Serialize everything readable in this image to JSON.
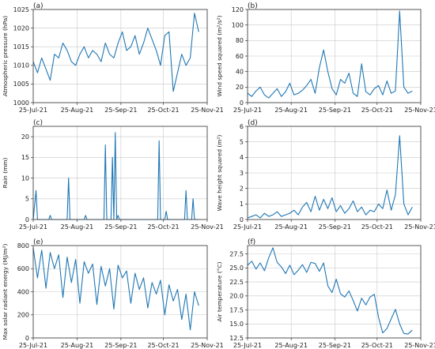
{
  "figure": {
    "series_color": "#1f77b4",
    "x_tick_labels": [
      "25-Jul-21",
      "25-Aug-21",
      "25-Sep-21",
      "25-Oct-21",
      "25-Nov-21"
    ]
  },
  "chart_data": [
    {
      "type": "line",
      "panel_label": "(a)",
      "ylabel": "Atmospheric pressure (hPa)",
      "xlim": [
        "2021-07-25",
        "2021-11-25"
      ],
      "ylim": [
        1000,
        1025
      ],
      "y_ticks": [
        1000,
        1005,
        1010,
        1015,
        1020,
        1025
      ],
      "y_tick_labels": [
        "1000",
        "1005",
        "1010",
        "1015",
        "1020",
        "1025"
      ],
      "grid": true,
      "x": [
        "2021-07-25",
        "2021-07-28",
        "2021-07-31",
        "2021-08-03",
        "2021-08-06",
        "2021-08-09",
        "2021-08-12",
        "2021-08-15",
        "2021-08-18",
        "2021-08-21",
        "2021-08-24",
        "2021-08-27",
        "2021-08-30",
        "2021-09-02",
        "2021-09-05",
        "2021-09-08",
        "2021-09-11",
        "2021-09-14",
        "2021-09-17",
        "2021-09-20",
        "2021-09-23",
        "2021-09-26",
        "2021-09-29",
        "2021-10-02",
        "2021-10-05",
        "2021-10-08",
        "2021-10-11",
        "2021-10-14",
        "2021-10-17",
        "2021-10-20",
        "2021-10-23",
        "2021-10-26",
        "2021-10-29",
        "2021-11-01",
        "2021-11-04",
        "2021-11-07",
        "2021-11-10",
        "2021-11-13",
        "2021-11-16",
        "2021-11-19"
      ],
      "values": [
        1011,
        1008,
        1012,
        1009,
        1006,
        1013,
        1012,
        1016,
        1014,
        1011,
        1010,
        1013,
        1015,
        1012,
        1014,
        1013,
        1011,
        1016,
        1013,
        1012,
        1016,
        1019,
        1014,
        1015,
        1018,
        1013,
        1016,
        1020,
        1017,
        1014,
        1010,
        1018,
        1019,
        1003,
        1008,
        1013,
        1010,
        1012,
        1024,
        1019
      ]
    },
    {
      "type": "line",
      "panel_label": "(b)",
      "ylabel": "Wind speed squared (m²/s²)",
      "xlim": [
        "2021-07-25",
        "2021-11-25"
      ],
      "ylim": [
        0,
        120
      ],
      "y_ticks": [
        0,
        20,
        40,
        60,
        80,
        100,
        120
      ],
      "y_tick_labels": [
        "0",
        "20",
        "40",
        "60",
        "80",
        "100",
        "120"
      ],
      "grid": true,
      "x": [
        "2021-07-25",
        "2021-07-28",
        "2021-07-31",
        "2021-08-03",
        "2021-08-06",
        "2021-08-09",
        "2021-08-12",
        "2021-08-15",
        "2021-08-18",
        "2021-08-21",
        "2021-08-24",
        "2021-08-27",
        "2021-08-30",
        "2021-09-02",
        "2021-09-05",
        "2021-09-08",
        "2021-09-11",
        "2021-09-14",
        "2021-09-17",
        "2021-09-20",
        "2021-09-23",
        "2021-09-26",
        "2021-09-29",
        "2021-10-02",
        "2021-10-05",
        "2021-10-08",
        "2021-10-11",
        "2021-10-14",
        "2021-10-17",
        "2021-10-20",
        "2021-10-23",
        "2021-10-26",
        "2021-10-29",
        "2021-11-01",
        "2021-11-04",
        "2021-11-07",
        "2021-11-10",
        "2021-11-13",
        "2021-11-16",
        "2021-11-19"
      ],
      "values": [
        12,
        8,
        15,
        20,
        10,
        6,
        12,
        18,
        8,
        14,
        25,
        10,
        12,
        16,
        22,
        30,
        12,
        45,
        68,
        40,
        18,
        10,
        30,
        25,
        38,
        12,
        8,
        50,
        14,
        10,
        18,
        22,
        10,
        28,
        12,
        15,
        118,
        20,
        12,
        15
      ]
    },
    {
      "type": "line",
      "panel_label": "(c)",
      "ylabel": "Rain (mm)",
      "xlim": [
        "2021-07-25",
        "2021-11-25"
      ],
      "ylim": [
        0,
        22.5
      ],
      "y_ticks": [
        0,
        5,
        10,
        15,
        20
      ],
      "y_tick_labels": [
        "0",
        "5",
        "10",
        "15",
        "20"
      ],
      "grid": true,
      "x": [
        "2021-07-25",
        "2021-07-27",
        "2021-07-28",
        "2021-07-29",
        "2021-08-05",
        "2021-08-06",
        "2021-08-07",
        "2021-08-18",
        "2021-08-19",
        "2021-08-20",
        "2021-08-30",
        "2021-08-31",
        "2021-09-01",
        "2021-09-13",
        "2021-09-14",
        "2021-09-15",
        "2021-09-18",
        "2021-09-19",
        "2021-09-20",
        "2021-09-21",
        "2021-09-22",
        "2021-09-23",
        "2021-09-24",
        "2021-10-21",
        "2021-10-22",
        "2021-10-23",
        "2021-10-26",
        "2021-10-27",
        "2021-10-28",
        "2021-11-09",
        "2021-11-10",
        "2021-11-11",
        "2021-11-14",
        "2021-11-15",
        "2021-11-16",
        "2021-11-19"
      ],
      "values": [
        0,
        7,
        0,
        0,
        0,
        1,
        0,
        0,
        10,
        0,
        0,
        1,
        0,
        0,
        18,
        0,
        0,
        15,
        0,
        21,
        0,
        1,
        0,
        0,
        19,
        0,
        0,
        2,
        0,
        0,
        7,
        0,
        0,
        5,
        0,
        0
      ]
    },
    {
      "type": "line",
      "panel_label": "(d)",
      "ylabel": "Wave height squared (m²)",
      "xlim": [
        "2021-07-25",
        "2021-11-25"
      ],
      "ylim": [
        0,
        6
      ],
      "y_ticks": [
        0,
        1,
        2,
        3,
        4,
        5,
        6
      ],
      "y_tick_labels": [
        "0",
        "1",
        "2",
        "3",
        "4",
        "5",
        "6"
      ],
      "grid": true,
      "x": [
        "2021-07-25",
        "2021-07-28",
        "2021-07-31",
        "2021-08-03",
        "2021-08-06",
        "2021-08-09",
        "2021-08-12",
        "2021-08-15",
        "2021-08-18",
        "2021-08-21",
        "2021-08-24",
        "2021-08-27",
        "2021-08-30",
        "2021-09-02",
        "2021-09-05",
        "2021-09-08",
        "2021-09-11",
        "2021-09-14",
        "2021-09-17",
        "2021-09-20",
        "2021-09-23",
        "2021-09-26",
        "2021-09-29",
        "2021-10-02",
        "2021-10-05",
        "2021-10-08",
        "2021-10-11",
        "2021-10-14",
        "2021-10-17",
        "2021-10-20",
        "2021-10-23",
        "2021-10-26",
        "2021-10-29",
        "2021-11-01",
        "2021-11-04",
        "2021-11-07",
        "2021-11-10",
        "2021-11-13",
        "2021-11-16",
        "2021-11-19"
      ],
      "values": [
        0.1,
        0.2,
        0.3,
        0.1,
        0.4,
        0.2,
        0.3,
        0.5,
        0.2,
        0.3,
        0.4,
        0.6,
        0.3,
        0.8,
        1.1,
        0.5,
        1.5,
        0.6,
        1.3,
        0.7,
        1.4,
        0.5,
        0.9,
        0.4,
        0.7,
        1.2,
        0.5,
        0.8,
        0.3,
        0.6,
        0.5,
        1.0,
        0.7,
        1.9,
        0.6,
        1.6,
        5.4,
        1.0,
        0.3,
        0.8
      ]
    },
    {
      "type": "line",
      "panel_label": "(e)",
      "ylabel": "Max solar radiant energy (MJ/m²)",
      "xlim": [
        "2021-07-25",
        "2021-11-25"
      ],
      "ylim": [
        0,
        800
      ],
      "y_ticks": [
        0,
        200,
        400,
        600,
        800
      ],
      "y_tick_labels": [
        "0",
        "200",
        "400",
        "600",
        "800"
      ],
      "grid": true,
      "x": [
        "2021-07-25",
        "2021-07-28",
        "2021-07-31",
        "2021-08-03",
        "2021-08-06",
        "2021-08-09",
        "2021-08-12",
        "2021-08-15",
        "2021-08-18",
        "2021-08-21",
        "2021-08-24",
        "2021-08-27",
        "2021-08-30",
        "2021-09-02",
        "2021-09-05",
        "2021-09-08",
        "2021-09-11",
        "2021-09-14",
        "2021-09-17",
        "2021-09-20",
        "2021-09-23",
        "2021-09-26",
        "2021-09-29",
        "2021-10-02",
        "2021-10-05",
        "2021-10-08",
        "2021-10-11",
        "2021-10-14",
        "2021-10-17",
        "2021-10-20",
        "2021-10-23",
        "2021-10-26",
        "2021-10-29",
        "2021-11-01",
        "2021-11-04",
        "2021-11-07",
        "2021-11-10",
        "2021-11-13",
        "2021-11-16",
        "2021-11-19"
      ],
      "values": [
        780,
        520,
        760,
        430,
        740,
        600,
        720,
        350,
        700,
        480,
        680,
        300,
        660,
        560,
        640,
        290,
        620,
        450,
        600,
        250,
        630,
        520,
        580,
        300,
        560,
        420,
        520,
        260,
        480,
        380,
        500,
        200,
        460,
        320,
        420,
        160,
        380,
        70,
        400,
        280
      ]
    },
    {
      "type": "line",
      "panel_label": "(f)",
      "ylabel": "Air temperature (°C)",
      "xlim": [
        "2021-07-25",
        "2021-11-25"
      ],
      "ylim": [
        12.5,
        29
      ],
      "y_ticks": [
        12.5,
        15.0,
        17.5,
        20.0,
        22.5,
        25.0,
        27.5
      ],
      "y_tick_labels": [
        "12.5",
        "15.0",
        "17.5",
        "20.0",
        "22.5",
        "25.0",
        "27.5"
      ],
      "grid": true,
      "x": [
        "2021-07-25",
        "2021-07-28",
        "2021-07-31",
        "2021-08-03",
        "2021-08-06",
        "2021-08-09",
        "2021-08-12",
        "2021-08-15",
        "2021-08-18",
        "2021-08-21",
        "2021-08-24",
        "2021-08-27",
        "2021-08-30",
        "2021-09-02",
        "2021-09-05",
        "2021-09-08",
        "2021-09-11",
        "2021-09-14",
        "2021-09-17",
        "2021-09-20",
        "2021-09-23",
        "2021-09-26",
        "2021-09-29",
        "2021-10-02",
        "2021-10-05",
        "2021-10-08",
        "2021-10-11",
        "2021-10-14",
        "2021-10-17",
        "2021-10-20",
        "2021-10-23",
        "2021-10-26",
        "2021-10-29",
        "2021-11-01",
        "2021-11-04",
        "2021-11-07",
        "2021-11-10",
        "2021-11-13",
        "2021-11-16",
        "2021-11-19"
      ],
      "values": [
        25.5,
        26.2,
        24.8,
        25.9,
        24.5,
        26.8,
        28.6,
        26.0,
        25.2,
        24.0,
        25.5,
        23.8,
        24.6,
        25.6,
        24.2,
        26.0,
        25.8,
        24.4,
        25.9,
        21.8,
        20.6,
        23.0,
        20.4,
        19.8,
        20.9,
        19.2,
        17.3,
        19.6,
        18.4,
        19.8,
        20.3,
        16.2,
        13.4,
        14.2,
        15.9,
        17.6,
        15.0,
        13.3,
        13.2,
        13.9
      ]
    }
  ]
}
